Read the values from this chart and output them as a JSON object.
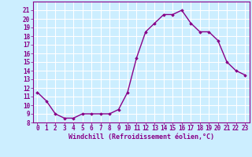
{
  "x": [
    0,
    1,
    2,
    3,
    4,
    5,
    6,
    7,
    8,
    9,
    10,
    11,
    12,
    13,
    14,
    15,
    16,
    17,
    18,
    19,
    20,
    21,
    22,
    23
  ],
  "y": [
    11.5,
    10.5,
    9.0,
    8.5,
    8.5,
    9.0,
    9.0,
    9.0,
    9.0,
    9.5,
    11.5,
    15.5,
    18.5,
    19.5,
    20.5,
    20.5,
    21.0,
    19.5,
    18.5,
    18.5,
    17.5,
    15.0,
    14.0,
    13.5
  ],
  "line_color": "#880088",
  "marker": "D",
  "marker_size": 1.8,
  "bg_color": "#cceeff",
  "grid_color": "#ffffff",
  "xlabel": "Windchill (Refroidissement éolien,°C)",
  "xlabel_color": "#880088",
  "tick_color": "#880088",
  "spine_color": "#880088",
  "ylim": [
    8,
    22
  ],
  "xlim": [
    -0.5,
    23.5
  ],
  "yticks": [
    8,
    9,
    10,
    11,
    12,
    13,
    14,
    15,
    16,
    17,
    18,
    19,
    20,
    21
  ],
  "xticks": [
    0,
    1,
    2,
    3,
    4,
    5,
    6,
    7,
    8,
    9,
    10,
    11,
    12,
    13,
    14,
    15,
    16,
    17,
    18,
    19,
    20,
    21,
    22,
    23
  ],
  "line_width": 1.0,
  "tick_fontsize": 5.5,
  "xlabel_fontsize": 6.0
}
